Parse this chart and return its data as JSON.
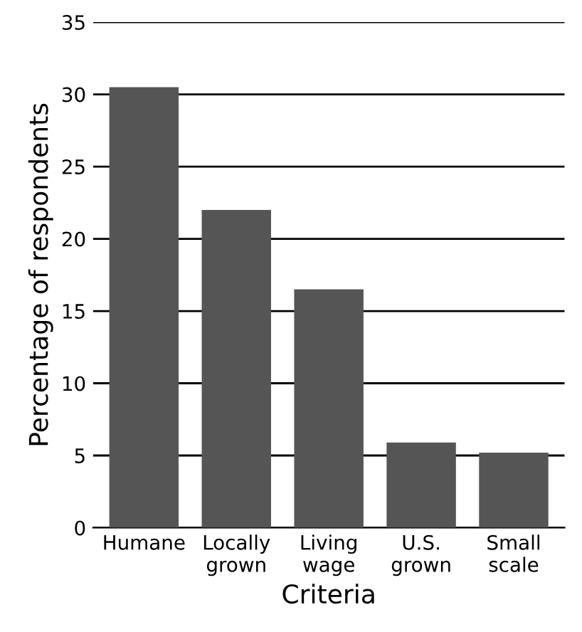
{
  "chart_data": {
    "type": "bar",
    "xlabel": "Criteria",
    "ylabel": "Percentage of respondents",
    "categories": [
      "Humane",
      "Locally\ngrown",
      "Living\nwage",
      "U.S.\ngrown",
      "Small\nscale"
    ],
    "values": [
      30.5,
      22.0,
      16.5,
      5.9,
      5.2
    ],
    "color": "#555555",
    "ylim": [
      0,
      35
    ],
    "yticks": [
      0,
      5,
      10,
      15,
      20,
      25,
      30,
      35
    ],
    "grid": "y"
  }
}
